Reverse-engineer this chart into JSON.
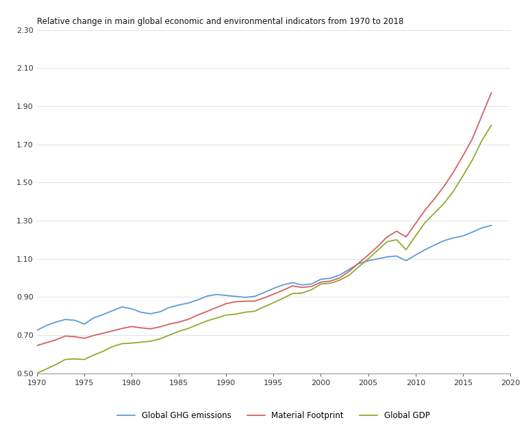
{
  "title": "Relative change in main global economic and environmental indicators from 1970 to 2018",
  "title_fontsize": 8.5,
  "xlim": [
    1970,
    2020
  ],
  "ylim": [
    0.5,
    2.3
  ],
  "xticks": [
    1970,
    1975,
    1980,
    1985,
    1990,
    1995,
    2000,
    2005,
    2010,
    2015,
    2020
  ],
  "yticks": [
    0.5,
    0.7,
    0.9,
    1.1,
    1.3,
    1.5,
    1.7,
    1.9,
    2.1,
    2.3
  ],
  "legend_labels": [
    "Global GHG emissions",
    "Material Footprint",
    "Global GDP"
  ],
  "ghg_color": "#5b9bd5",
  "mf_color": "#d45f5f",
  "gdp_color": "#8faa2b",
  "line_width": 1.3,
  "years_ghg": [
    1970,
    1971,
    1972,
    1973,
    1974,
    1975,
    1976,
    1977,
    1978,
    1979,
    1980,
    1981,
    1982,
    1983,
    1984,
    1985,
    1986,
    1987,
    1988,
    1989,
    1990,
    1991,
    1992,
    1993,
    1994,
    1995,
    1996,
    1997,
    1998,
    1999,
    2000,
    2001,
    2002,
    2003,
    2004,
    2005,
    2006,
    2007,
    2008,
    2009,
    2010,
    2011,
    2012,
    2013,
    2014,
    2015,
    2016,
    2017,
    2018
  ],
  "vals_ghg": [
    0.725,
    0.75,
    0.768,
    0.782,
    0.778,
    0.758,
    0.79,
    0.808,
    0.828,
    0.848,
    0.838,
    0.82,
    0.812,
    0.822,
    0.845,
    0.858,
    0.868,
    0.885,
    0.905,
    0.913,
    0.908,
    0.903,
    0.898,
    0.903,
    0.923,
    0.945,
    0.963,
    0.975,
    0.963,
    0.968,
    0.993,
    0.998,
    1.015,
    1.045,
    1.075,
    1.09,
    1.1,
    1.11,
    1.115,
    1.09,
    1.12,
    1.148,
    1.172,
    1.195,
    1.21,
    1.22,
    1.24,
    1.262,
    1.275
  ],
  "years_mf": [
    1970,
    1971,
    1972,
    1973,
    1974,
    1975,
    1976,
    1977,
    1978,
    1979,
    1980,
    1981,
    1982,
    1983,
    1984,
    1985,
    1986,
    1987,
    1988,
    1989,
    1990,
    1991,
    1992,
    1993,
    1994,
    1995,
    1996,
    1997,
    1998,
    1999,
    2000,
    2001,
    2002,
    2003,
    2004,
    2005,
    2006,
    2007,
    2008,
    2009,
    2010,
    2011,
    2012,
    2013,
    2014,
    2015,
    2016,
    2017,
    2018
  ],
  "vals_mf": [
    0.645,
    0.66,
    0.675,
    0.695,
    0.692,
    0.683,
    0.698,
    0.71,
    0.722,
    0.735,
    0.745,
    0.738,
    0.733,
    0.743,
    0.758,
    0.768,
    0.783,
    0.805,
    0.825,
    0.845,
    0.865,
    0.875,
    0.878,
    0.878,
    0.895,
    0.915,
    0.935,
    0.958,
    0.95,
    0.955,
    0.978,
    0.983,
    1.0,
    1.035,
    1.078,
    1.12,
    1.165,
    1.215,
    1.245,
    1.215,
    1.285,
    1.355,
    1.415,
    1.48,
    1.555,
    1.64,
    1.73,
    1.85,
    1.97
  ],
  "years_gdp": [
    1970,
    1971,
    1972,
    1973,
    1974,
    1975,
    1976,
    1977,
    1978,
    1979,
    1980,
    1981,
    1982,
    1983,
    1984,
    1985,
    1986,
    1987,
    1988,
    1989,
    1990,
    1991,
    1992,
    1993,
    1994,
    1995,
    1996,
    1997,
    1998,
    1999,
    2000,
    2001,
    2002,
    2003,
    2004,
    2005,
    2006,
    2007,
    2008,
    2009,
    2010,
    2011,
    2012,
    2013,
    2014,
    2015,
    2016,
    2017,
    2018
  ],
  "vals_gdp": [
    0.5,
    0.522,
    0.545,
    0.572,
    0.575,
    0.572,
    0.595,
    0.615,
    0.64,
    0.655,
    0.658,
    0.663,
    0.668,
    0.68,
    0.7,
    0.72,
    0.735,
    0.755,
    0.775,
    0.79,
    0.805,
    0.81,
    0.82,
    0.825,
    0.848,
    0.87,
    0.893,
    0.918,
    0.92,
    0.938,
    0.968,
    0.972,
    0.988,
    1.015,
    1.058,
    1.1,
    1.145,
    1.19,
    1.2,
    1.148,
    1.22,
    1.29,
    1.34,
    1.39,
    1.455,
    1.535,
    1.618,
    1.72,
    1.8
  ],
  "bg_color": "#ffffff",
  "spine_color": "#999999",
  "tick_color": "#333333",
  "grid_color": "#dddddd"
}
